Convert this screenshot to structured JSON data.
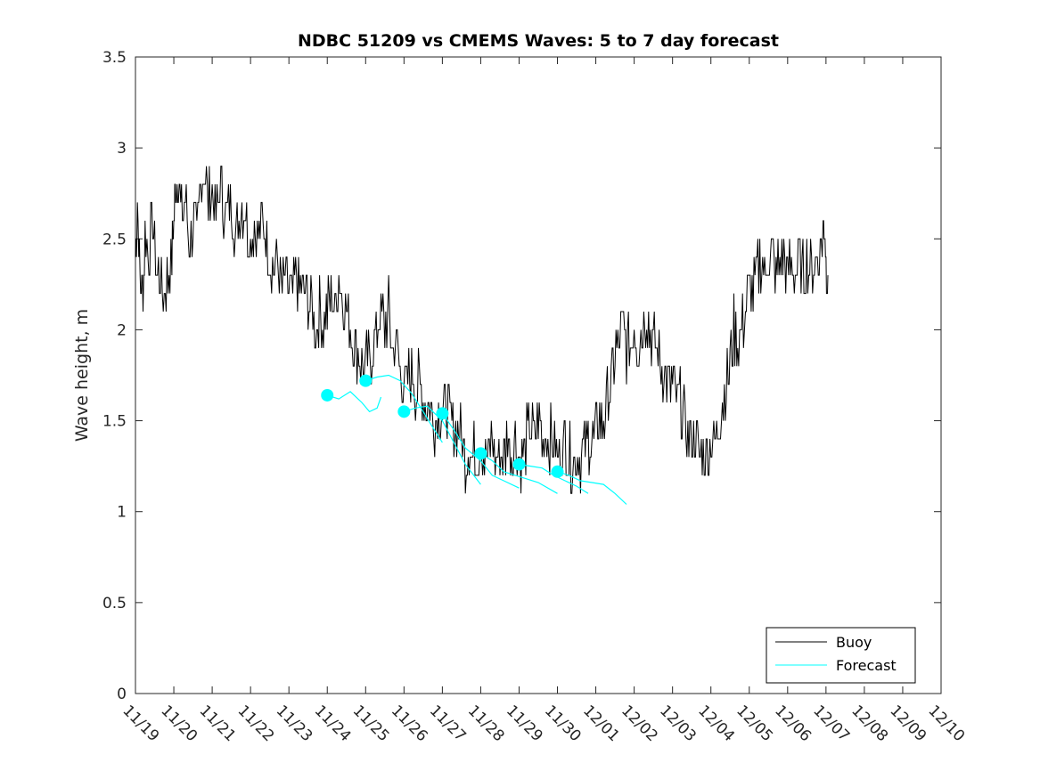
{
  "chart_data": {
    "type": "line",
    "title": "NDBC 51209 vs CMEMS Waves: 5 to 7 day forecast",
    "xlabel": "",
    "ylabel": "Wave height, m",
    "x_tick_labels": [
      "11/19",
      "11/20",
      "11/21",
      "11/22",
      "11/23",
      "11/24",
      "11/25",
      "11/26",
      "11/27",
      "11/28",
      "11/29",
      "11/30",
      "12/01",
      "12/02",
      "12/03",
      "12/04",
      "12/05",
      "12/06",
      "12/07",
      "12/08",
      "12/09",
      "12/10"
    ],
    "y_ticks": [
      0,
      0.5,
      1,
      1.5,
      2,
      2.5,
      3,
      3.5
    ],
    "ylim": [
      0,
      3.5
    ],
    "xlim": [
      "11/19",
      "12/10"
    ],
    "grid": false,
    "legend_position": "bottom-right",
    "series": [
      {
        "name": "Buoy",
        "color": "#000000",
        "x_unit": "days after 11/19",
        "points": [
          [
            0,
            2.4
          ],
          [
            0.05,
            2.7
          ],
          [
            0.12,
            2.3
          ],
          [
            0.18,
            2.2
          ],
          [
            0.25,
            2.5
          ],
          [
            0.35,
            2.4
          ],
          [
            0.45,
            2.6
          ],
          [
            0.55,
            2.3
          ],
          [
            0.65,
            2.3
          ],
          [
            0.75,
            2.2
          ],
          [
            0.85,
            2.3
          ],
          [
            0.95,
            2.4
          ],
          [
            1.0,
            2.6
          ],
          [
            1.05,
            2.8
          ],
          [
            1.12,
            2.9
          ],
          [
            1.2,
            2.6
          ],
          [
            1.3,
            2.7
          ],
          [
            1.4,
            2.5
          ],
          [
            1.5,
            2.6
          ],
          [
            1.6,
            2.5
          ],
          [
            1.7,
            2.8
          ],
          [
            1.8,
            2.9
          ],
          [
            1.9,
            2.7
          ],
          [
            2.0,
            2.8
          ],
          [
            2.1,
            2.6
          ],
          [
            2.2,
            2.8
          ],
          [
            2.3,
            2.7
          ],
          [
            2.4,
            2.6
          ],
          [
            2.5,
            2.7
          ],
          [
            2.6,
            2.5
          ],
          [
            2.7,
            2.6
          ],
          [
            2.8,
            2.7
          ],
          [
            2.9,
            2.6
          ],
          [
            3.0,
            2.5
          ],
          [
            3.1,
            2.6
          ],
          [
            3.2,
            2.5
          ],
          [
            3.3,
            2.6
          ],
          [
            3.4,
            2.5
          ],
          [
            3.5,
            2.4
          ],
          [
            3.6,
            2.3
          ],
          [
            3.7,
            2.4
          ],
          [
            3.8,
            2.2
          ],
          [
            3.9,
            2.3
          ],
          [
            4.0,
            2.2
          ],
          [
            4.1,
            2.2
          ],
          [
            4.2,
            2.3
          ],
          [
            4.3,
            2.2
          ],
          [
            4.4,
            2.2
          ],
          [
            4.5,
            2.2
          ],
          [
            4.6,
            2.1
          ],
          [
            4.7,
            2.0
          ],
          [
            4.8,
            2.1
          ],
          [
            4.9,
            2.0
          ],
          [
            5.0,
            2.1
          ],
          [
            5.1,
            2.2
          ],
          [
            5.2,
            2.1
          ],
          [
            5.3,
            2.3
          ],
          [
            5.4,
            2.2
          ],
          [
            5.5,
            2.1
          ],
          [
            5.6,
            2.0
          ],
          [
            5.7,
            1.9
          ],
          [
            5.8,
            1.9
          ],
          [
            5.9,
            1.8
          ],
          [
            6.0,
            1.8
          ],
          [
            6.1,
            1.8
          ],
          [
            6.2,
            1.9
          ],
          [
            6.3,
            2.0
          ],
          [
            6.4,
            2.1
          ],
          [
            6.5,
            2.0
          ],
          [
            6.6,
            2.1
          ],
          [
            6.7,
            1.9
          ],
          [
            6.8,
            1.9
          ],
          [
            6.9,
            1.8
          ],
          [
            7.0,
            1.7
          ],
          [
            7.1,
            1.7
          ],
          [
            7.2,
            1.8
          ],
          [
            7.3,
            1.7
          ],
          [
            7.4,
            1.7
          ],
          [
            7.5,
            1.6
          ],
          [
            7.6,
            1.6
          ],
          [
            7.7,
            1.6
          ],
          [
            7.8,
            1.5
          ],
          [
            7.9,
            1.6
          ],
          [
            8.0,
            1.5
          ],
          [
            8.1,
            1.6
          ],
          [
            8.2,
            1.5
          ],
          [
            8.3,
            1.5
          ],
          [
            8.4,
            1.5
          ],
          [
            8.5,
            1.4
          ],
          [
            8.6,
            1.3
          ],
          [
            8.7,
            1.4
          ],
          [
            8.8,
            1.3
          ],
          [
            8.9,
            1.3
          ],
          [
            9.0,
            1.4
          ],
          [
            9.1,
            1.3
          ],
          [
            9.2,
            1.3
          ],
          [
            9.3,
            1.4
          ],
          [
            9.4,
            1.3
          ],
          [
            9.5,
            1.3
          ],
          [
            9.6,
            1.3
          ],
          [
            9.7,
            1.4
          ],
          [
            9.8,
            1.3
          ],
          [
            9.9,
            1.4
          ],
          [
            10.0,
            1.3
          ],
          [
            10.1,
            1.3
          ],
          [
            10.2,
            1.4
          ],
          [
            10.3,
            1.5
          ],
          [
            10.4,
            1.4
          ],
          [
            10.5,
            1.5
          ],
          [
            10.6,
            1.4
          ],
          [
            10.7,
            1.4
          ],
          [
            10.8,
            1.4
          ],
          [
            10.9,
            1.4
          ],
          [
            11.0,
            1.3
          ],
          [
            11.1,
            1.3
          ],
          [
            11.2,
            1.4
          ],
          [
            11.3,
            1.3
          ],
          [
            11.4,
            1.3
          ],
          [
            11.5,
            1.3
          ],
          [
            11.6,
            1.3
          ],
          [
            11.7,
            1.3
          ],
          [
            11.8,
            1.4
          ],
          [
            11.9,
            1.4
          ],
          [
            12.0,
            1.4
          ],
          [
            12.1,
            1.5
          ],
          [
            12.2,
            1.5
          ],
          [
            12.3,
            1.6
          ],
          [
            12.4,
            1.7
          ],
          [
            12.5,
            1.9
          ],
          [
            12.6,
            1.9
          ],
          [
            12.7,
            2.0
          ],
          [
            12.8,
            1.9
          ],
          [
            12.9,
            1.9
          ],
          [
            13.0,
            2.0
          ],
          [
            13.1,
            1.9
          ],
          [
            13.2,
            2.0
          ],
          [
            13.3,
            2.1
          ],
          [
            13.4,
            2.0
          ],
          [
            13.5,
            1.9
          ],
          [
            13.6,
            1.9
          ],
          [
            13.7,
            1.8
          ],
          [
            13.8,
            1.8
          ],
          [
            13.9,
            1.7
          ],
          [
            14.0,
            1.7
          ],
          [
            14.1,
            1.6
          ],
          [
            14.2,
            1.6
          ],
          [
            14.3,
            1.5
          ],
          [
            14.4,
            1.4
          ],
          [
            14.5,
            1.4
          ],
          [
            14.6,
            1.4
          ],
          [
            14.7,
            1.3
          ],
          [
            14.8,
            1.3
          ],
          [
            14.9,
            1.3
          ],
          [
            15.0,
            1.4
          ],
          [
            15.1,
            1.4
          ],
          [
            15.2,
            1.5
          ],
          [
            15.3,
            1.6
          ],
          [
            15.4,
            1.7
          ],
          [
            15.5,
            1.8
          ],
          [
            15.6,
            2.0
          ],
          [
            15.7,
            1.9
          ],
          [
            15.8,
            2.0
          ],
          [
            15.9,
            2.1
          ],
          [
            16.0,
            2.2
          ],
          [
            16.1,
            2.2
          ],
          [
            16.2,
            2.3
          ],
          [
            16.3,
            2.4
          ],
          [
            16.4,
            2.3
          ],
          [
            16.5,
            2.4
          ],
          [
            16.6,
            2.4
          ],
          [
            16.7,
            2.3
          ],
          [
            16.8,
            2.4
          ],
          [
            16.9,
            2.4
          ],
          [
            17.0,
            2.3
          ],
          [
            17.1,
            2.4
          ],
          [
            17.2,
            2.3
          ],
          [
            17.3,
            2.4
          ],
          [
            17.4,
            2.3
          ],
          [
            17.5,
            2.4
          ],
          [
            17.6,
            2.3
          ],
          [
            17.7,
            2.4
          ],
          [
            17.8,
            2.4
          ],
          [
            17.9,
            2.5
          ],
          [
            17.95,
            2.6
          ],
          [
            18.0,
            2.4
          ],
          [
            18.05,
            2.3
          ]
        ]
      },
      {
        "name": "Forecast",
        "color": "#00FFFF",
        "x_unit": "days after 11/19",
        "segments": [
          {
            "marker": [
              5.0,
              1.64
            ],
            "points": [
              [
                5.0,
                1.64
              ],
              [
                5.3,
                1.62
              ],
              [
                5.6,
                1.66
              ],
              [
                5.9,
                1.6
              ],
              [
                6.1,
                1.55
              ],
              [
                6.3,
                1.57
              ],
              [
                6.4,
                1.63
              ]
            ]
          },
          {
            "marker": [
              6.0,
              1.72
            ],
            "points": [
              [
                6.0,
                1.72
              ],
              [
                6.3,
                1.74
              ],
              [
                6.6,
                1.75
              ],
              [
                6.9,
                1.72
              ],
              [
                7.2,
                1.65
              ],
              [
                7.5,
                1.55
              ],
              [
                7.7,
                1.48
              ],
              [
                8.0,
                1.38
              ]
            ]
          },
          {
            "marker": [
              7.0,
              1.55
            ],
            "points": [
              [
                7.0,
                1.55
              ],
              [
                7.3,
                1.57
              ],
              [
                7.6,
                1.58
              ],
              [
                8.0,
                1.5
              ],
              [
                8.3,
                1.38
              ],
              [
                8.6,
                1.26
              ],
              [
                9.0,
                1.15
              ]
            ]
          },
          {
            "marker": [
              8.0,
              1.54
            ],
            "points": [
              [
                8.0,
                1.54
              ],
              [
                8.3,
                1.45
              ],
              [
                8.6,
                1.35
              ],
              [
                9.0,
                1.28
              ],
              [
                9.3,
                1.2
              ],
              [
                9.6,
                1.17
              ],
              [
                10.0,
                1.13
              ]
            ]
          },
          {
            "marker": [
              9.0,
              1.32
            ],
            "points": [
              [
                9.0,
                1.32
              ],
              [
                9.3,
                1.28
              ],
              [
                9.6,
                1.22
              ],
              [
                9.9,
                1.2
              ],
              [
                10.2,
                1.18
              ],
              [
                10.5,
                1.16
              ],
              [
                11.0,
                1.1
              ]
            ]
          },
          {
            "marker": [
              10.0,
              1.26
            ],
            "points": [
              [
                10.0,
                1.26
              ],
              [
                10.3,
                1.25
              ],
              [
                10.6,
                1.24
              ],
              [
                10.9,
                1.2
              ],
              [
                11.2,
                1.17
              ],
              [
                11.5,
                1.14
              ],
              [
                11.8,
                1.1
              ]
            ]
          },
          {
            "marker": [
              11.0,
              1.22
            ],
            "points": [
              [
                11.0,
                1.22
              ],
              [
                11.3,
                1.2
              ],
              [
                11.6,
                1.17
              ],
              [
                11.9,
                1.16
              ],
              [
                12.2,
                1.15
              ],
              [
                12.5,
                1.1
              ],
              [
                12.8,
                1.04
              ]
            ]
          }
        ]
      }
    ]
  }
}
